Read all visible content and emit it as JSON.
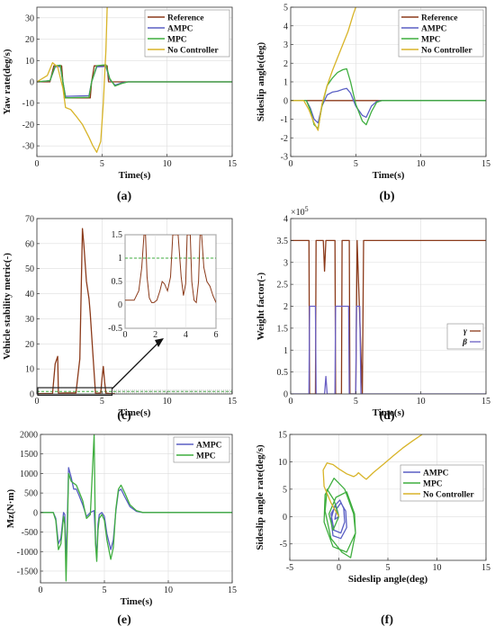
{
  "colors": {
    "reference": "#8b3a1a",
    "ampc": "#5a5fc4",
    "mpc": "#3fae3f",
    "nocontroller": "#d8b428",
    "gamma": "#8b3a1a",
    "beta": "#6a5fc4",
    "grid": "#dddddd",
    "axis": "#333333"
  },
  "chart_data": [
    {
      "id": "a",
      "caption": "(a)",
      "type": "line",
      "xlabel": "Time(s)",
      "ylabel": "Yaw rate(deg/s)",
      "xlim": [
        0,
        15
      ],
      "ylim": [
        -35,
        35
      ],
      "xticks": [
        0,
        5,
        10,
        15
      ],
      "yticks": [
        -30,
        -20,
        -10,
        0,
        10,
        20,
        30
      ],
      "grid": true,
      "legend_position": "top-right",
      "series": [
        {
          "name": "Reference",
          "color_key": "reference",
          "x": [
            0,
            1.0,
            1.3,
            1.9,
            2.0,
            2.1,
            4.1,
            4.2,
            4.4,
            5.4,
            5.5,
            5.7,
            15
          ],
          "y": [
            0,
            0,
            7.5,
            7.5,
            0,
            -7.5,
            -7.5,
            0,
            7.5,
            7.5,
            0,
            0,
            0
          ]
        },
        {
          "name": "AMPC",
          "color_key": "ampc",
          "x": [
            0,
            1.0,
            1.4,
            1.8,
            2.0,
            2.2,
            4.0,
            4.2,
            4.6,
            5.3,
            5.6,
            6.0,
            6.5,
            7,
            15
          ],
          "y": [
            0,
            0.5,
            7.0,
            7.2,
            0,
            -6.8,
            -6.5,
            0,
            7.0,
            7.2,
            1.0,
            -1.5,
            -0.5,
            0,
            0
          ]
        },
        {
          "name": "MPC",
          "color_key": "mpc",
          "x": [
            0,
            1.0,
            1.4,
            1.8,
            2.0,
            2.2,
            4.0,
            4.2,
            4.6,
            5.3,
            5.6,
            6.0,
            6.5,
            7,
            15
          ],
          "y": [
            0,
            0.6,
            7.5,
            7.8,
            0,
            -7.5,
            -7.2,
            0,
            7.6,
            8.0,
            1.5,
            -2.0,
            -0.8,
            0,
            0
          ]
        },
        {
          "name": "No Controller",
          "color_key": "nocontroller",
          "x": [
            0,
            0.8,
            1.2,
            1.6,
            2.0,
            2.2,
            2.6,
            3.0,
            3.5,
            4.0,
            4.3,
            4.6,
            4.9,
            5.1,
            5.3,
            5.4
          ],
          "y": [
            0,
            3,
            9,
            7,
            -3,
            -12,
            -13,
            -16,
            -20,
            -26,
            -30,
            -33,
            -28,
            -10,
            15,
            35
          ]
        }
      ]
    },
    {
      "id": "b",
      "caption": "(b)",
      "type": "line",
      "xlabel": "Time(s)",
      "ylabel": "Sideslip angle(deg)",
      "xlim": [
        0,
        15
      ],
      "ylim": [
        -3,
        5
      ],
      "xticks": [
        0,
        5,
        10,
        15
      ],
      "yticks": [
        -3,
        -2,
        -1,
        0,
        1,
        2,
        3,
        4,
        5
      ],
      "grid": true,
      "legend_position": "top-right",
      "series": [
        {
          "name": "Reference",
          "color_key": "reference",
          "x": [
            0,
            15
          ],
          "y": [
            0,
            0
          ]
        },
        {
          "name": "AMPC",
          "color_key": "ampc",
          "x": [
            0,
            1.2,
            1.5,
            1.8,
            2.1,
            2.4,
            2.8,
            3.2,
            3.6,
            4.0,
            4.3,
            4.6,
            5.0,
            5.5,
            5.8,
            6.2,
            6.6,
            7,
            15
          ],
          "y": [
            0,
            0,
            -0.4,
            -1.0,
            -1.2,
            -0.3,
            0.3,
            0.45,
            0.5,
            0.6,
            0.65,
            0.4,
            -0.3,
            -0.8,
            -0.9,
            -0.3,
            -0.05,
            0,
            0
          ]
        },
        {
          "name": "MPC",
          "color_key": "mpc",
          "x": [
            0,
            1.2,
            1.5,
            1.8,
            2.1,
            2.4,
            2.8,
            3.2,
            3.6,
            4.0,
            4.3,
            4.6,
            5.0,
            5.5,
            5.8,
            6.2,
            6.6,
            7,
            15
          ],
          "y": [
            0,
            0,
            -0.5,
            -1.3,
            -1.5,
            -0.3,
            0.8,
            1.2,
            1.5,
            1.65,
            1.7,
            1.0,
            -0.2,
            -1.1,
            -1.3,
            -0.6,
            -0.1,
            0,
            0
          ]
        },
        {
          "name": "No Controller",
          "color_key": "nocontroller",
          "x": [
            0,
            1.0,
            1.4,
            1.8,
            2.1,
            2.4,
            2.8,
            3.2,
            3.6,
            4.0,
            4.4,
            4.8,
            5.0
          ],
          "y": [
            0,
            0,
            -0.5,
            -1.2,
            -1.6,
            -0.2,
            0.8,
            1.6,
            2.3,
            3.0,
            3.7,
            4.6,
            5.0
          ]
        }
      ]
    },
    {
      "id": "c",
      "caption": "(c)",
      "type": "line",
      "xlabel": "Time(s)",
      "ylabel": "Vehicle stability metric(-)",
      "xlim": [
        0,
        15
      ],
      "ylim": [
        0,
        70
      ],
      "xticks": [
        0,
        5,
        10,
        15
      ],
      "yticks": [
        0,
        10,
        20,
        30,
        40,
        50,
        60,
        70
      ],
      "grid": true,
      "reference_lines": [
        {
          "y": 1,
          "style": "dashed",
          "color_key": "mpc"
        }
      ],
      "series": [
        {
          "color_key": "reference",
          "x": [
            0,
            1.2,
            1.4,
            1.6,
            1.65,
            1.8,
            2.2,
            3.0,
            3.3,
            3.5,
            3.6,
            3.8,
            4.0,
            4.1,
            4.3,
            4.5,
            4.7,
            4.9,
            5.0,
            5.1,
            5.2,
            5.3,
            5.5,
            6.0
          ],
          "y": [
            0.1,
            0.2,
            12,
            15,
            0.3,
            0.3,
            0.4,
            0.4,
            14,
            66,
            60,
            45,
            38,
            32,
            16,
            0.3,
            0.3,
            0.4,
            6,
            11,
            5,
            0.3,
            0.2,
            0.1
          ]
        }
      ],
      "inset": {
        "xlim": [
          0,
          6
        ],
        "ylim": [
          -0.5,
          1.5
        ],
        "xticks": [
          0,
          2,
          4,
          6
        ],
        "yticks": [
          -0.5,
          0,
          0.5,
          1,
          1.5
        ],
        "x": [
          0,
          0.6,
          0.9,
          1.1,
          1.25,
          1.35,
          1.45,
          1.6,
          1.75,
          1.9,
          2.1,
          2.3,
          2.45,
          2.6,
          2.8,
          3.0,
          3.15,
          3.25,
          3.35,
          3.5,
          3.7,
          3.85,
          4.0,
          4.1,
          4.2,
          4.3,
          4.4,
          4.55,
          4.7,
          4.85,
          4.95,
          5.05,
          5.2,
          5.4,
          5.6,
          5.8,
          6.0
        ],
        "y": [
          0.1,
          0.1,
          0.3,
          0.8,
          1.5,
          1.5,
          0.6,
          0.15,
          0.05,
          0.05,
          0.1,
          0.3,
          0.5,
          0.45,
          0.3,
          0.6,
          1.5,
          1.5,
          1.5,
          1.5,
          0.6,
          0.2,
          0.45,
          1.5,
          1.5,
          1.5,
          0.5,
          0.1,
          0.05,
          0.5,
          1.5,
          1.5,
          0.8,
          0.5,
          0.4,
          0.2,
          0.05
        ]
      }
    },
    {
      "id": "d",
      "caption": "(d)",
      "type": "line",
      "xlabel": "Time(s)",
      "ylabel": "Weight factor(-)",
      "xlim": [
        0,
        15
      ],
      "ylim": [
        0,
        4
      ],
      "xticks": [
        0,
        5,
        10,
        15
      ],
      "yticks": [
        0,
        0.5,
        1,
        1.5,
        2,
        2.5,
        3,
        3.5,
        4
      ],
      "ytick_labels": [
        "0",
        "0.5",
        "1",
        "1.5",
        "2",
        "2.5",
        "3",
        "3.5",
        "4"
      ],
      "multiplier": "×10",
      "multiplier_exp": "5",
      "grid": true,
      "legend_position": "center-right",
      "series": [
        {
          "name": "γ",
          "color_key": "gamma",
          "x": [
            0,
            1.4,
            1.45,
            1.9,
            1.95,
            2.5,
            2.6,
            2.7,
            2.8,
            3.4,
            3.45,
            3.9,
            3.95,
            4.5,
            4.55,
            5.0,
            5.1,
            5.5,
            5.6,
            15
          ],
          "y": [
            3.5,
            3.5,
            0,
            0,
            3.5,
            3.5,
            2.8,
            3.5,
            3.5,
            3.5,
            0,
            0,
            3.5,
            3.5,
            0,
            0,
            3.5,
            0,
            3.5,
            3.5
          ]
        },
        {
          "name": "β",
          "color_key": "beta",
          "x": [
            0,
            1.4,
            1.45,
            1.9,
            1.95,
            2.6,
            2.7,
            2.8,
            3.4,
            3.45,
            4.45,
            4.5,
            5.0,
            5.05,
            5.3,
            5.4,
            15
          ],
          "y": [
            0,
            0,
            2.0,
            2.0,
            0,
            0,
            0.4,
            0,
            0,
            2.0,
            2.0,
            0,
            0,
            2.0,
            2.0,
            0,
            0
          ]
        }
      ]
    },
    {
      "id": "e",
      "caption": "(e)",
      "type": "line",
      "xlabel": "Time(s)",
      "ylabel": "Mz(N·m)",
      "xlim": [
        0,
        15
      ],
      "ylim": [
        -1800,
        2000
      ],
      "xticks": [
        0,
        5,
        10,
        15
      ],
      "yticks": [
        -1500,
        -1000,
        -500,
        0,
        500,
        1000,
        1500,
        2000
      ],
      "grid": true,
      "legend_position": "top-right",
      "series": [
        {
          "name": "AMPC",
          "color_key": "ampc",
          "x": [
            0,
            1.0,
            1.2,
            1.4,
            1.6,
            1.8,
            1.9,
            2.0,
            2.1,
            2.2,
            2.4,
            2.6,
            2.8,
            3.0,
            3.3,
            3.6,
            3.9,
            4.2,
            4.3,
            4.4,
            4.5,
            4.6,
            4.8,
            5.0,
            5.2,
            5.5,
            5.7,
            5.9,
            6.1,
            6.3,
            6.6,
            7.0,
            7.5,
            8,
            15
          ],
          "y": [
            0,
            0,
            -150,
            -800,
            -650,
            0,
            -50,
            -1250,
            -200,
            1150,
            900,
            600,
            600,
            450,
            200,
            -100,
            0,
            50,
            -700,
            -1150,
            -300,
            -50,
            0,
            -100,
            -550,
            -950,
            -700,
            50,
            550,
            600,
            400,
            150,
            30,
            0,
            0
          ]
        },
        {
          "name": "MPC",
          "color_key": "mpc",
          "x": [
            0,
            1.0,
            1.2,
            1.4,
            1.6,
            1.8,
            1.9,
            2.0,
            2.1,
            2.2,
            2.4,
            2.6,
            2.8,
            3.0,
            3.3,
            3.6,
            3.9,
            4.2,
            4.3,
            4.4,
            4.5,
            4.6,
            4.8,
            5.0,
            5.2,
            5.5,
            5.7,
            5.9,
            6.1,
            6.3,
            6.6,
            7.0,
            7.5,
            8,
            15
          ],
          "y": [
            0,
            0,
            -200,
            -950,
            -800,
            -100,
            -300,
            -1750,
            -500,
            1000,
            800,
            750,
            700,
            550,
            300,
            -150,
            -50,
            2000,
            -800,
            -1250,
            -450,
            -150,
            -50,
            -200,
            -700,
            -1200,
            -900,
            100,
            600,
            700,
            500,
            200,
            50,
            0,
            0
          ]
        }
      ]
    },
    {
      "id": "f",
      "caption": "(f)",
      "type": "line",
      "xlabel": "Sideslip angle(deg)",
      "ylabel": "Sideslip angle rate(deg/s)",
      "xlim": [
        -5,
        15
      ],
      "ylim": [
        -8,
        15
      ],
      "xticks": [
        -5,
        0,
        5,
        10,
        15
      ],
      "yticks": [
        -5,
        0,
        5,
        10,
        15
      ],
      "grid": true,
      "legend_position": "center-right",
      "series": [
        {
          "name": "AMPC",
          "color_key": "ampc",
          "x": [
            0,
            -0.3,
            -0.8,
            -0.5,
            0.2,
            0.6,
            0.5,
            0.1,
            -0.4,
            -0.8,
            -0.6,
            0.2,
            0.8,
            0.7,
            0.2,
            -0.2,
            -0.4,
            0
          ],
          "y": [
            0,
            2.0,
            0.5,
            -2.5,
            -3.0,
            -1.0,
            1.5,
            3.0,
            2.0,
            -0.5,
            -3.5,
            -4.0,
            -2.0,
            1.0,
            2.5,
            1.5,
            -0.5,
            0
          ]
        },
        {
          "name": "MPC",
          "color_key": "mpc",
          "x": [
            0,
            -0.5,
            -1.2,
            -1.4,
            -0.8,
            0.3,
            1.2,
            1.7,
            1.5,
            0.6,
            -0.5,
            -1.4,
            -1.5,
            -0.6,
            0.8,
            1.7,
            1.6,
            0.8,
            -0.3,
            -1.0,
            -0.6,
            0
          ],
          "y": [
            0,
            3.0,
            5.0,
            1.0,
            -4.0,
            -6.5,
            -7.5,
            -3.0,
            0.5,
            5.0,
            7.0,
            4.0,
            -1.0,
            -5.5,
            -6.5,
            -3.0,
            0.5,
            4.5,
            3.5,
            0.5,
            -2.5,
            0
          ]
        },
        {
          "name": "No Controller",
          "color_key": "nocontroller",
          "x": [
            0,
            -0.8,
            -1.5,
            -1.6,
            -1.2,
            -0.6,
            0,
            0.8,
            1.5,
            1.8,
            2.0,
            2.5,
            2.8,
            3.5,
            4.5,
            5.5,
            6.5,
            7.5,
            8.5
          ],
          "y": [
            0,
            2.5,
            5.5,
            8.5,
            9.8,
            9.5,
            8.7,
            7.8,
            7.3,
            7.6,
            8.0,
            7.2,
            6.8,
            8.0,
            9.5,
            11.0,
            12.5,
            13.8,
            15.0
          ]
        }
      ]
    }
  ]
}
